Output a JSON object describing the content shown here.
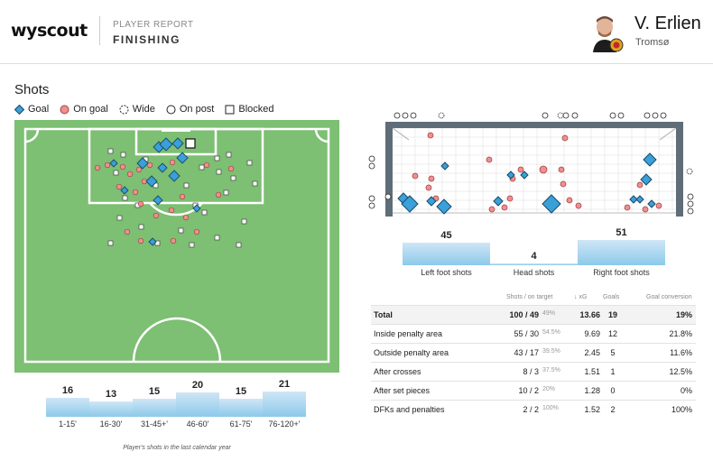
{
  "header": {
    "logo": "wyscout",
    "report_kind": "PLAYER REPORT",
    "report_title": "FINISHING",
    "player_name": "V. Erlien",
    "team": "Tromsø"
  },
  "shots_section": {
    "title": "Shots",
    "legend": [
      {
        "label": "Goal",
        "icon": "diamond-icon"
      },
      {
        "label": "On goal",
        "icon": "circle-icon"
      },
      {
        "label": "Wide",
        "icon": "dashed-circle-icon"
      },
      {
        "label": "On post",
        "icon": "ring-icon"
      },
      {
        "label": "Blocked",
        "icon": "square-icon"
      }
    ]
  },
  "time_bars": {
    "bars": [
      {
        "label": "1-15'",
        "value": "16"
      },
      {
        "label": "16-30'",
        "value": "13"
      },
      {
        "label": "31-45+'",
        "value": "15"
      },
      {
        "label": "46-60'",
        "value": "20"
      },
      {
        "label": "61-75'",
        "value": "15"
      },
      {
        "label": "76-120+'",
        "value": "21"
      }
    ],
    "caption": "Player's shots in the last calendar year"
  },
  "foot_bars": {
    "bars": [
      {
        "label": "Left foot shots",
        "value": "45"
      },
      {
        "label": "Head shots",
        "value": "4"
      },
      {
        "label": "Right foot shots",
        "value": "51"
      }
    ]
  },
  "table": {
    "headers": {
      "shots": "Shots / on target",
      "xg": "↓ xG",
      "goals": "Goals",
      "conversion": "Goal conversion"
    },
    "rows": [
      {
        "name": "Total",
        "shots": "100 / 49",
        "pct": "49%",
        "xg": "13.66",
        "goals": "19",
        "conv": "19%"
      },
      {
        "name": "Inside penalty area",
        "shots": "55 / 30",
        "pct": "54.5%",
        "xg": "9.69",
        "goals": "12",
        "conv": "21.8%"
      },
      {
        "name": "Outside penalty area",
        "shots": "43 / 17",
        "pct": "39.5%",
        "xg": "2.45",
        "goals": "5",
        "conv": "11.6%"
      },
      {
        "name": "After crosses",
        "shots": "8 / 3",
        "pct": "37.5%",
        "xg": "1.51",
        "goals": "1",
        "conv": "12.5%"
      },
      {
        "name": "After set pieces",
        "shots": "10 / 2",
        "pct": "20%",
        "xg": "1.28",
        "goals": "0",
        "conv": "0%"
      },
      {
        "name": "DFKs and penalties",
        "shots": "2 / 2",
        "pct": "100%",
        "xg": "1.52",
        "goals": "2",
        "conv": "100%"
      }
    ]
  },
  "colors": {
    "pitch": "#7dbf73",
    "goal": "#3aa0d8",
    "on_goal": "#ef8f8f",
    "bar_top": "#cfe6f6",
    "bar_bottom": "#8cc9ea"
  }
}
